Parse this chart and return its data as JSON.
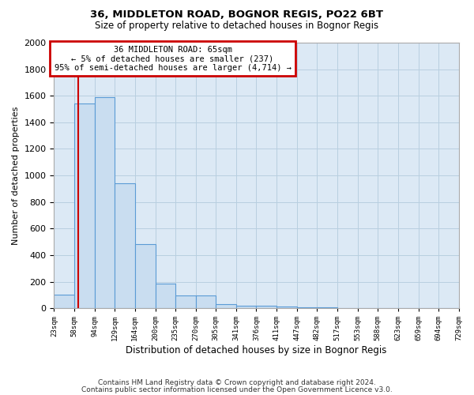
{
  "title": "36, MIDDLETON ROAD, BOGNOR REGIS, PO22 6BT",
  "subtitle": "Size of property relative to detached houses in Bognor Regis",
  "xlabel": "Distribution of detached houses by size in Bognor Regis",
  "ylabel": "Number of detached properties",
  "bin_edges": [
    23,
    58,
    94,
    129,
    164,
    200,
    235,
    270,
    305,
    341,
    376,
    411,
    447,
    482,
    517,
    553,
    588,
    623,
    659,
    694,
    729
  ],
  "bar_heights": [
    100,
    1540,
    1590,
    940,
    480,
    185,
    95,
    95,
    30,
    20,
    20,
    10,
    8,
    5,
    3,
    3,
    2,
    2,
    2,
    2
  ],
  "bar_color": "#c9ddf0",
  "bar_edge_color": "#5b9bd5",
  "grid_color": "#b8cfe0",
  "background_color": "#dce9f5",
  "red_line_x": 65,
  "annotation_text": "36 MIDDLETON ROAD: 65sqm\n← 5% of detached houses are smaller (237)\n95% of semi-detached houses are larger (4,714) →",
  "annotation_box_facecolor": "#ffffff",
  "annotation_border_color": "#cc0000",
  "ylim": [
    0,
    2000
  ],
  "yticks": [
    0,
    200,
    400,
    600,
    800,
    1000,
    1200,
    1400,
    1600,
    1800,
    2000
  ],
  "footnote_line1": "Contains HM Land Registry data © Crown copyright and database right 2024.",
  "footnote_line2": "Contains public sector information licensed under the Open Government Licence v3.0.",
  "tick_labels": [
    "23sqm",
    "58sqm",
    "94sqm",
    "129sqm",
    "164sqm",
    "200sqm",
    "235sqm",
    "270sqm",
    "305sqm",
    "341sqm",
    "376sqm",
    "411sqm",
    "447sqm",
    "482sqm",
    "517sqm",
    "553sqm",
    "588sqm",
    "623sqm",
    "659sqm",
    "694sqm",
    "729sqm"
  ]
}
